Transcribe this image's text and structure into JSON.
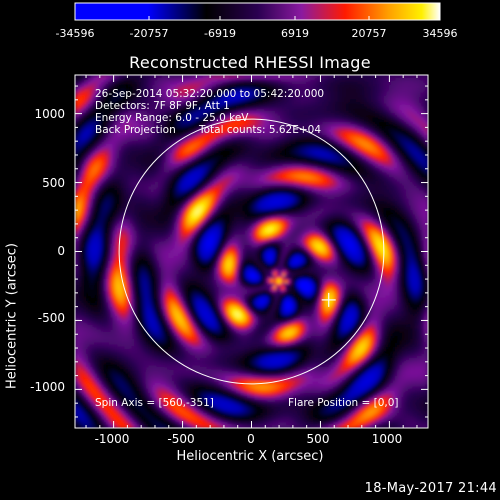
{
  "window": {
    "title": "Reconstructed RHESSI Image",
    "timestamp": "18-May-2017 21:44"
  },
  "colorbar": {
    "ticks": [
      "-34596",
      "-20757",
      "-6919",
      "6919",
      "20757",
      "34596"
    ],
    "colors": [
      "#0000ff",
      "#000000",
      "#7a1fa8",
      "#ff2a00",
      "#ff9a00",
      "#ffffff"
    ]
  },
  "info": {
    "time_range": "26-Sep-2014 05:32:20.000 to 05:42:20.000",
    "detectors": "Detectors: 7F 8F 9F, Att 1",
    "energy": "Energy Range: 6.0 - 25.0 keV",
    "method": "Back Projection",
    "counts": "Total counts: 5.62E+04"
  },
  "footer": {
    "spin_axis": "Spin Axis = [560,-351]",
    "flare_position": "Flare Position = [0,0]"
  },
  "chart_data": {
    "type": "heatmap",
    "title": "Reconstructed RHESSI Image",
    "xlabel": "Heliocentric X (arcsec)",
    "ylabel": "Heliocentric Y (arcsec)",
    "xlim": [
      -1280,
      1280
    ],
    "ylim": [
      -1280,
      1280
    ],
    "xticks": [
      -1000,
      -500,
      0,
      500,
      1000
    ],
    "yticks": [
      1000,
      500,
      0,
      -500,
      -1000
    ],
    "xtick_labels": [
      "-1000",
      "-500",
      "0",
      "500",
      "1000"
    ],
    "ytick_labels": [
      "1000",
      "500",
      "0",
      "-500",
      "-1000"
    ],
    "value_range": [
      -34596,
      34596
    ],
    "solar_limb_radius": 960,
    "solar_center": [
      0,
      0
    ],
    "spin_axis_marker": [
      560,
      -351
    ],
    "peak_position": [
      200,
      -210
    ],
    "colormap": "blue-black-purple-red-yellow-white"
  }
}
